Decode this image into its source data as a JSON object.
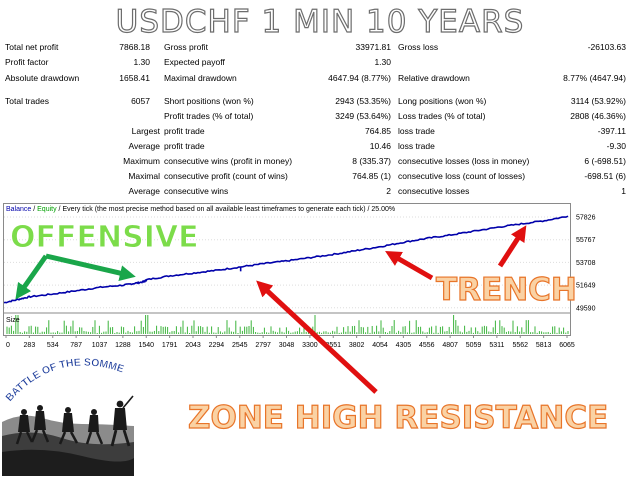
{
  "title": "USDCHF 1 MIN 10 YEARS",
  "stats": {
    "rows": [
      {
        "l1": "Total net profit",
        "v1": "7868.18",
        "l2": "Gross profit",
        "v2": "33971.81",
        "l3": "Gross loss",
        "v3": "-26103.63"
      },
      {
        "l1": "Profit factor",
        "v1": "1.30",
        "l2": "Expected payoff",
        "v2": "1.30",
        "l3": "",
        "v3": ""
      },
      {
        "l1": "Absolute drawdown",
        "v1": "1658.41",
        "l2": "Maximal drawdown",
        "v2": "4647.94 (8.77%)",
        "l3": "Relative drawdown",
        "v3": "8.77% (4647.94)"
      },
      {
        "l1": "Total trades",
        "v1": "6057",
        "l2": "Short positions (won %)",
        "v2": "2943 (53.35%)",
        "l3": "Long positions (won %)",
        "v3": "3114 (53.92%)"
      },
      {
        "l1": "",
        "v1": "",
        "l2": "Profit trades (% of total)",
        "v2": "3249 (53.64%)",
        "l3": "Loss trades (% of total)",
        "v3": "2808 (46.36%)"
      },
      {
        "l1": "Largest",
        "v1": "",
        "l2": "profit trade",
        "v2": "764.85",
        "l3": "loss trade",
        "v3": "-397.11"
      },
      {
        "l1": "Average",
        "v1": "",
        "l2": "profit trade",
        "v2": "10.46",
        "l3": "loss trade",
        "v3": "-9.30"
      },
      {
        "l1": "Maximum",
        "v1": "",
        "l2": "consecutive wins (profit in money)",
        "v2": "8 (335.37)",
        "l3": "consecutive losses (loss in money)",
        "v3": "6 (-698.51)"
      },
      {
        "l1": "Maximal",
        "v1": "",
        "l2": "consecutive profit (count of wins)",
        "v2": "764.85 (1)",
        "l3": "consecutive loss (count of losses)",
        "v3": "-698.51 (6)"
      },
      {
        "l1": "Average",
        "v1": "",
        "l2": "consecutive wins",
        "v2": "2",
        "l3": "consecutive losses",
        "v3": "1"
      }
    ]
  },
  "chart_data": {
    "type": "line",
    "legend": {
      "balance": "Balance",
      "sep": " / ",
      "equity": "Equity",
      "rest": " / Every tick (the most precise method based on all available least timeframes to generate each tick) / 25.00%"
    },
    "size_label": "Size",
    "x_ticks": [
      "0",
      "283",
      "534",
      "787",
      "1037",
      "1288",
      "1540",
      "1791",
      "2043",
      "2294",
      "2545",
      "2797",
      "3048",
      "3300",
      "3551",
      "3802",
      "4054",
      "4305",
      "4556",
      "4807",
      "5059",
      "5311",
      "5562",
      "5813",
      "6065"
    ],
    "y_ticks": [
      "57826",
      "55767",
      "53708",
      "51649",
      "49590"
    ],
    "y_tick_values": [
      57826,
      55767,
      53708,
      51649,
      49590
    ],
    "ylim": [
      49300,
      58100
    ],
    "xlim": [
      0,
      6065
    ],
    "series": [
      {
        "name": "Balance",
        "color": "#0000aa",
        "x": [
          0,
          150,
          283,
          534,
          787,
          1037,
          1288,
          1400,
          1500,
          1540,
          1791,
          2043,
          2294,
          2545,
          2797,
          3048,
          3300,
          3551,
          3802,
          4054,
          4305,
          4556,
          4807,
          5059,
          5311,
          5562,
          5813,
          6065
        ],
        "y": [
          50050,
          50350,
          50600,
          50850,
          51150,
          51450,
          51650,
          51800,
          51950,
          52150,
          52500,
          52750,
          53000,
          53300,
          53600,
          53850,
          54150,
          54450,
          54800,
          55150,
          55550,
          55900,
          56200,
          56550,
          56900,
          57200,
          57500,
          57900
        ]
      }
    ],
    "equity_dip": {
      "x": 2545,
      "y": 52900
    }
  },
  "annotations": {
    "offensive": "OFFENSIVE",
    "trench": "TRENCH",
    "zone": "ZONE HIGH RESISTANCE",
    "battle": "BATTLE OF THE SOMME"
  },
  "colors": {
    "offensive_fill": "#7cdc4a",
    "offensive_arrow": "#1aa64a",
    "warning_fill": "#fad2a4",
    "warning_stroke": "#e8752a",
    "red_arrow": "#e01010",
    "balance": "#0000aa",
    "size_bars": "#3cb43c"
  }
}
